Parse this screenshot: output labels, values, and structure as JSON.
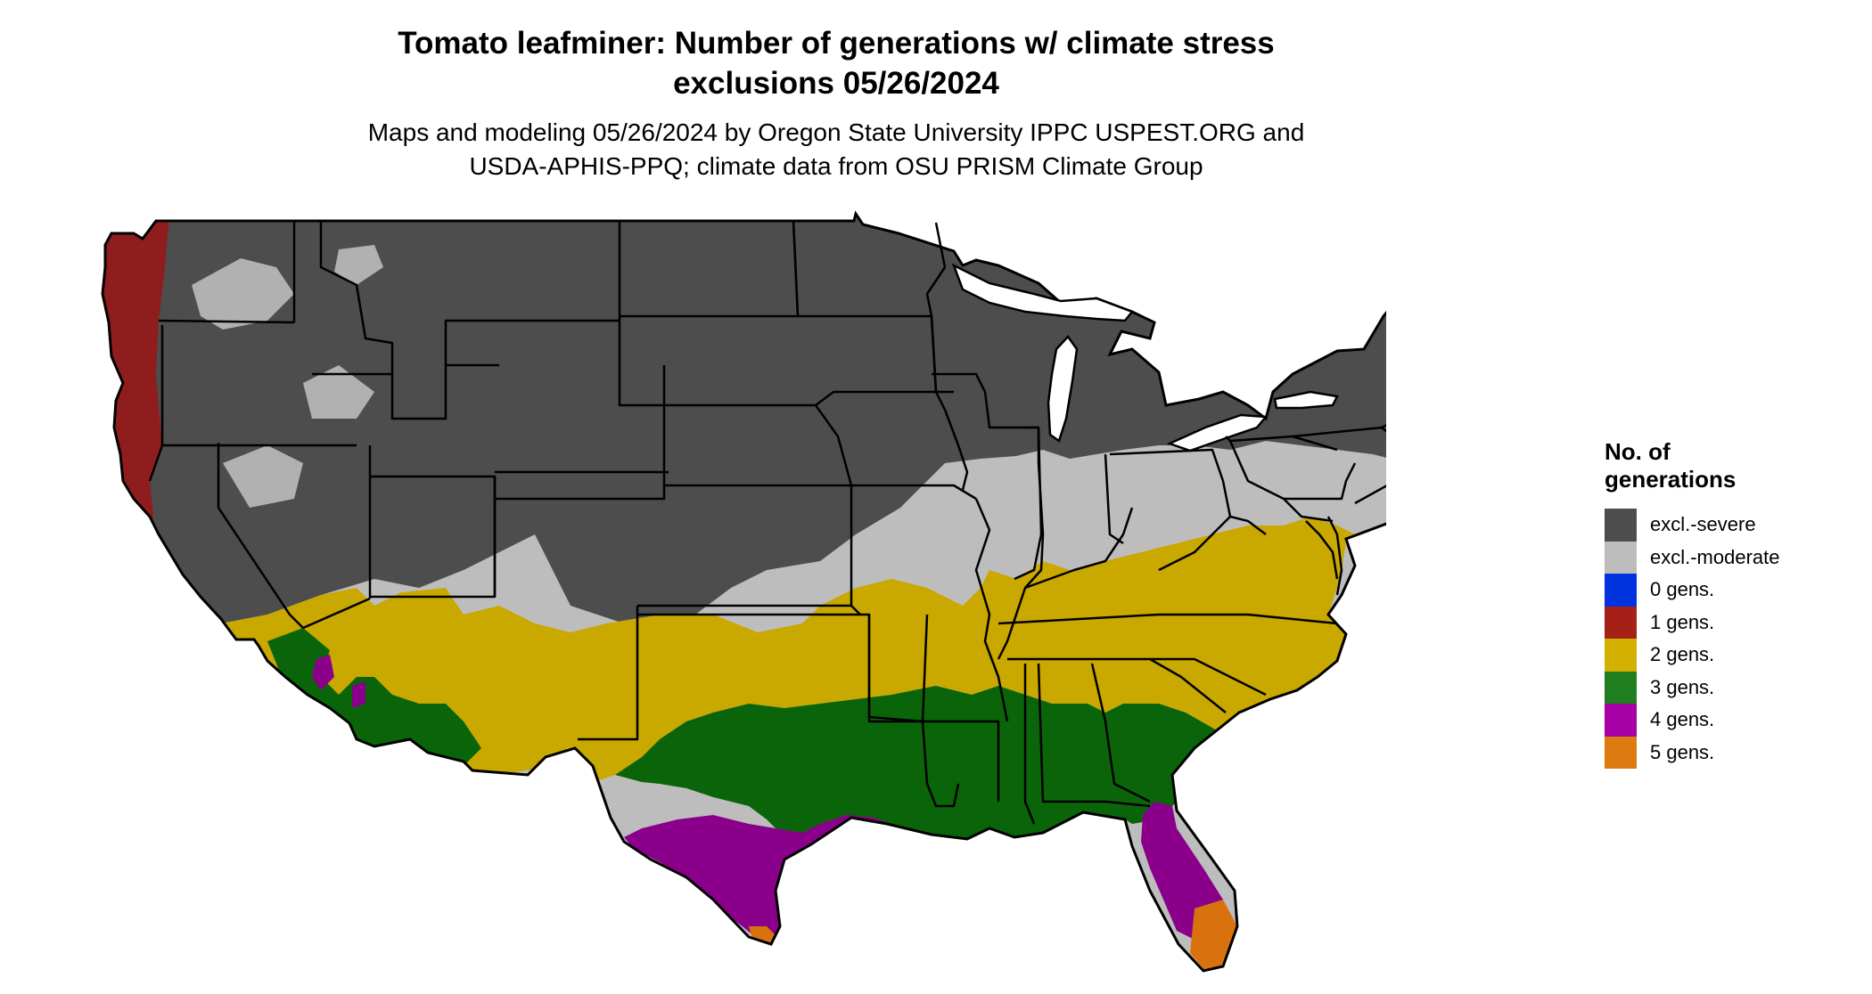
{
  "title": {
    "line1": "Tomato leafminer: Number of generations w/ climate stress",
    "line2": "exclusions 05/26/2024"
  },
  "subtitle": {
    "line1": "Maps and modeling 05/26/2024 by Oregon State University IPPC USPEST.ORG and",
    "line2": "USDA-APHIS-PPQ; climate data from OSU PRISM Climate Group"
  },
  "legend": {
    "title_line1": "No. of",
    "title_line2": "generations",
    "items": [
      {
        "label": "excl.-severe",
        "color": "#4d4d4d"
      },
      {
        "label": "excl.-moderate",
        "color": "#bdbdbd"
      },
      {
        "label": "0 gens.",
        "color": "#0033dd"
      },
      {
        "label": "1 gens.",
        "color": "#a52117"
      },
      {
        "label": "2 gens.",
        "color": "#d4b100"
      },
      {
        "label": "3 gens.",
        "color": "#1f7f1f"
      },
      {
        "label": "4 gens.",
        "color": "#a600a6"
      },
      {
        "label": "5 gens.",
        "color": "#dd7a10"
      }
    ]
  },
  "map_colors": {
    "severe": "#4d4d4d",
    "moderate": "#bdbdbd",
    "one_gen": "#8f1d1d",
    "two_gens": "#c9a800",
    "three_gens": "#0a640a",
    "four_gens": "#8b008b",
    "five_gens": "#d9720e",
    "boundary": "#000000"
  }
}
